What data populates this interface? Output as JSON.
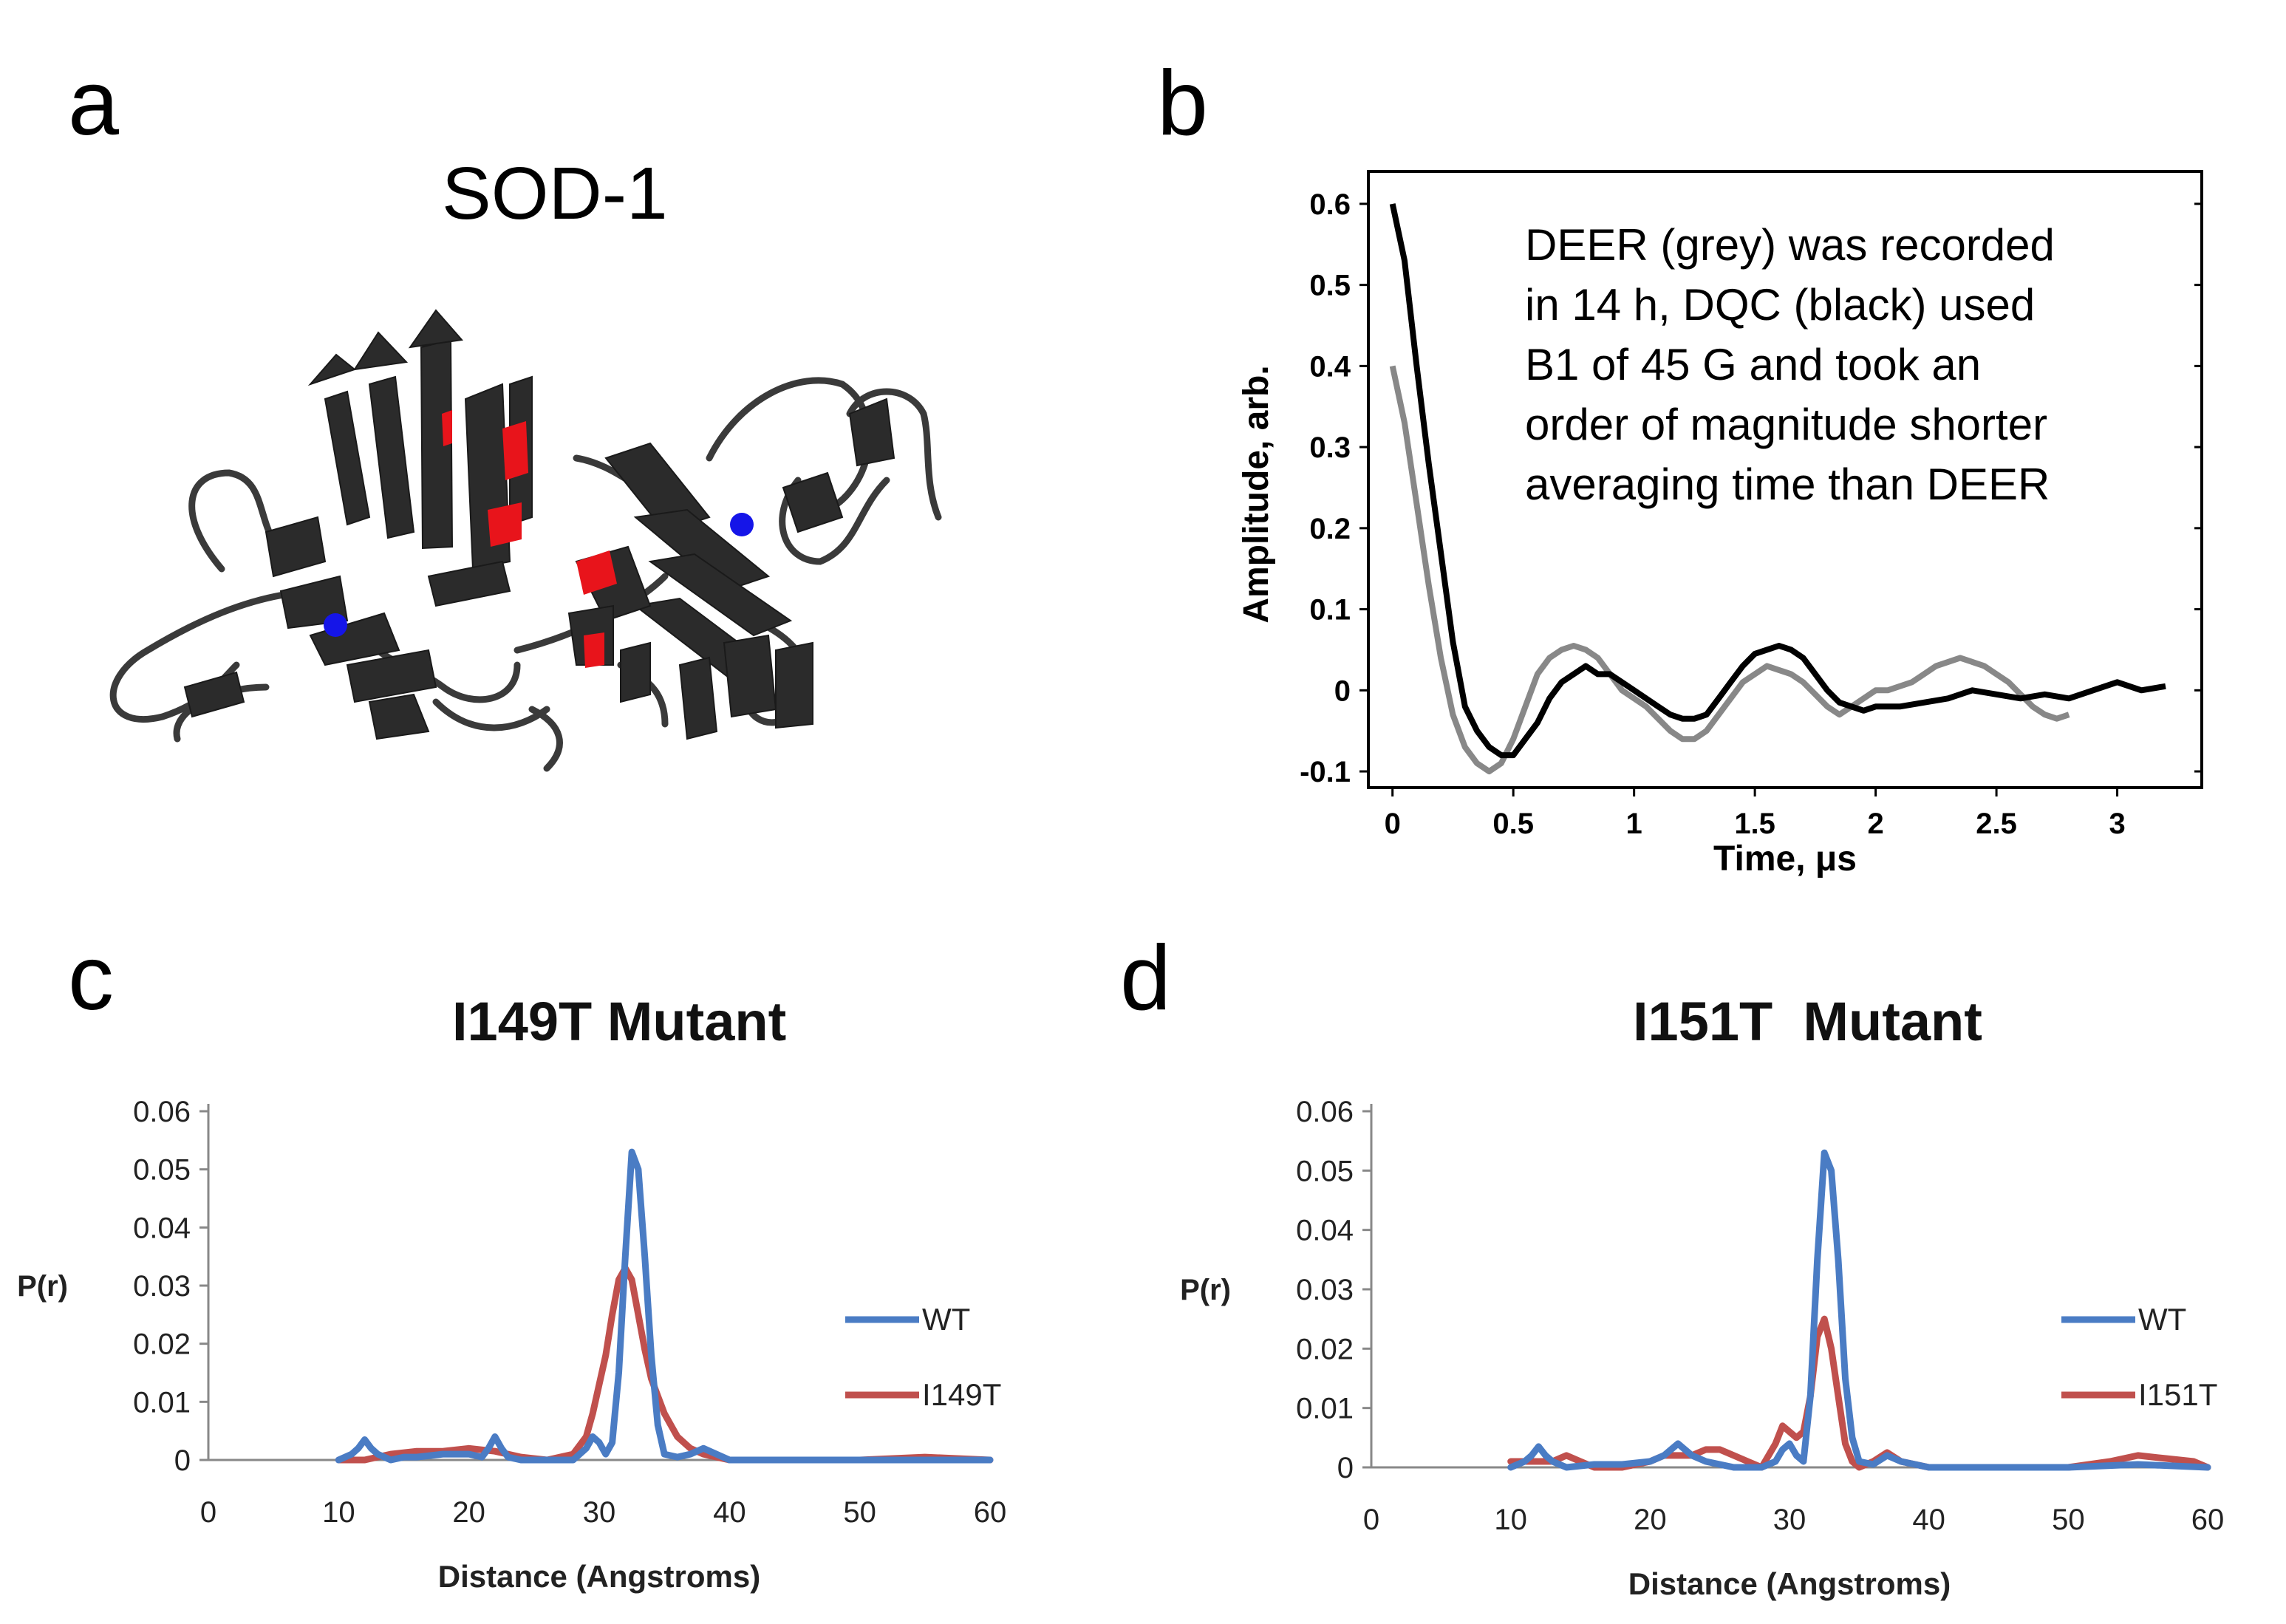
{
  "panels": {
    "a": {
      "letter": "a",
      "title": "SOD-1"
    },
    "b": {
      "letter": "b"
    },
    "c": {
      "letter": "c"
    },
    "d": {
      "letter": "d"
    }
  },
  "structure": {
    "strand_color": "#2b2b2b",
    "highlight_color": "#e8141b",
    "metal_color": "#1515e8"
  },
  "chart_data": [
    {
      "panel": "b",
      "type": "line",
      "title": "",
      "xlabel": "Time, μs",
      "ylabel": "Amplitude, arb.",
      "xlim": [
        -0.1,
        3.35
      ],
      "ylim": [
        -0.12,
        0.64
      ],
      "xticks": [
        "0",
        "0.5",
        "1",
        "1.5",
        "2",
        "2.5",
        "3"
      ],
      "yticks": [
        "-0.1",
        "0",
        "0.1",
        "0.2",
        "0.3",
        "0.4",
        "0.5",
        "0.6"
      ],
      "annotation": [
        "DEER (grey) was recorded",
        "in 14 h, DQC (black) used",
        "B1 of 45 G and took an",
        "order of magnitude shorter",
        "averaging time than DEER"
      ],
      "grid": false,
      "series": [
        {
          "color": "#888888",
          "x": [
            0,
            0.05,
            0.1,
            0.15,
            0.2,
            0.25,
            0.3,
            0.35,
            0.4,
            0.45,
            0.5,
            0.55,
            0.6,
            0.65,
            0.7,
            0.75,
            0.8,
            0.85,
            0.9,
            0.95,
            1.0,
            1.05,
            1.1,
            1.15,
            1.2,
            1.25,
            1.3,
            1.35,
            1.4,
            1.45,
            1.5,
            1.55,
            1.6,
            1.65,
            1.7,
            1.75,
            1.8,
            1.85,
            1.9,
            1.95,
            2.0,
            2.05,
            2.1,
            2.15,
            2.2,
            2.25,
            2.3,
            2.35,
            2.4,
            2.45,
            2.5,
            2.55,
            2.6,
            2.65,
            2.7,
            2.75,
            2.8
          ],
          "y": [
            0.4,
            0.33,
            0.23,
            0.13,
            0.04,
            -0.03,
            -0.07,
            -0.09,
            -0.1,
            -0.09,
            -0.06,
            -0.02,
            0.02,
            0.04,
            0.05,
            0.055,
            0.05,
            0.04,
            0.02,
            0.0,
            -0.01,
            -0.02,
            -0.035,
            -0.05,
            -0.06,
            -0.06,
            -0.05,
            -0.03,
            -0.01,
            0.01,
            0.02,
            0.03,
            0.025,
            0.02,
            0.01,
            -0.005,
            -0.02,
            -0.03,
            -0.02,
            -0.01,
            0.0,
            0.0,
            0.005,
            0.01,
            0.02,
            0.03,
            0.035,
            0.04,
            0.035,
            0.03,
            0.02,
            0.01,
            -0.005,
            -0.02,
            -0.03,
            -0.035,
            -0.03
          ]
        },
        {
          "color": "#000000",
          "x": [
            0,
            0.05,
            0.1,
            0.15,
            0.2,
            0.25,
            0.3,
            0.35,
            0.4,
            0.45,
            0.5,
            0.55,
            0.6,
            0.65,
            0.7,
            0.75,
            0.8,
            0.85,
            0.9,
            0.95,
            1.0,
            1.05,
            1.1,
            1.15,
            1.2,
            1.25,
            1.3,
            1.35,
            1.4,
            1.45,
            1.5,
            1.55,
            1.6,
            1.65,
            1.7,
            1.75,
            1.8,
            1.85,
            1.9,
            1.95,
            2.0,
            2.1,
            2.2,
            2.3,
            2.4,
            2.5,
            2.6,
            2.7,
            2.8,
            2.9,
            3.0,
            3.1,
            3.2
          ],
          "y": [
            0.6,
            0.53,
            0.4,
            0.28,
            0.17,
            0.06,
            -0.02,
            -0.05,
            -0.07,
            -0.08,
            -0.08,
            -0.06,
            -0.04,
            -0.01,
            0.01,
            0.02,
            0.03,
            0.02,
            0.02,
            0.01,
            0.0,
            -0.01,
            -0.02,
            -0.03,
            -0.035,
            -0.035,
            -0.03,
            -0.01,
            0.01,
            0.03,
            0.045,
            0.05,
            0.055,
            0.05,
            0.04,
            0.02,
            0.0,
            -0.015,
            -0.02,
            -0.025,
            -0.02,
            -0.02,
            -0.015,
            -0.01,
            0.0,
            -0.005,
            -0.01,
            -0.005,
            -0.01,
            0.0,
            0.01,
            0.0,
            0.005
          ]
        }
      ]
    },
    {
      "panel": "c",
      "type": "line",
      "title": "I149T Mutant",
      "xlabel": "Distance (Angstroms)",
      "ylabel": "P(r)",
      "xlim": [
        0,
        60
      ],
      "ylim": [
        0,
        0.06
      ],
      "xticks": [
        "0",
        "10",
        "20",
        "30",
        "40",
        "50",
        "60"
      ],
      "yticks": [
        "0",
        "0.01",
        "0.02",
        "0.03",
        "0.04",
        "0.05",
        "0.06"
      ],
      "legend_position": "right",
      "grid": false,
      "series": [
        {
          "name": "WT",
          "color": "#4a7cc4",
          "x": [
            10,
            11,
            11.5,
            12,
            12.5,
            13,
            14,
            15,
            16,
            18,
            20,
            21,
            21.5,
            22,
            22.5,
            23,
            24,
            26,
            28,
            29,
            29.5,
            30,
            30.5,
            31,
            31.5,
            32,
            32.5,
            33,
            33.5,
            34,
            34.5,
            35,
            36,
            37,
            38,
            39,
            40,
            45,
            50,
            55,
            60
          ],
          "y": [
            0,
            0.001,
            0.002,
            0.0035,
            0.002,
            0.001,
            0,
            0.0005,
            0.0005,
            0.001,
            0.001,
            0.0005,
            0.002,
            0.004,
            0.002,
            0.0005,
            0,
            0,
            0,
            0.002,
            0.004,
            0.003,
            0.001,
            0.003,
            0.015,
            0.035,
            0.053,
            0.05,
            0.035,
            0.018,
            0.006,
            0.001,
            0.0005,
            0.001,
            0.002,
            0.001,
            0,
            0,
            0,
            0,
            0
          ]
        },
        {
          "name": "I149T",
          "color": "#c0504d",
          "x": [
            10,
            12,
            14,
            16,
            18,
            20,
            22,
            24,
            26,
            28,
            29,
            29.5,
            30,
            30.5,
            31,
            31.5,
            32,
            32.5,
            33,
            33.5,
            34,
            34.5,
            35,
            35.5,
            36,
            37,
            38,
            39,
            40,
            45,
            50,
            55,
            60
          ],
          "y": [
            0,
            0,
            0.001,
            0.0015,
            0.0015,
            0.002,
            0.0015,
            0.0005,
            0,
            0.001,
            0.004,
            0.008,
            0.013,
            0.018,
            0.025,
            0.031,
            0.033,
            0.031,
            0.025,
            0.019,
            0.014,
            0.011,
            0.008,
            0.006,
            0.004,
            0.002,
            0.001,
            0.0005,
            0,
            0,
            0,
            0.0005,
            0
          ]
        }
      ]
    },
    {
      "panel": "d",
      "type": "line",
      "title": "I151T  Mutant",
      "xlabel": "Distance (Angstroms)",
      "ylabel": "P(r)",
      "xlim": [
        0,
        60
      ],
      "ylim": [
        0,
        0.06
      ],
      "xticks": [
        "0",
        "10",
        "20",
        "30",
        "40",
        "50",
        "60"
      ],
      "yticks": [
        "0",
        "0.01",
        "0.02",
        "0.03",
        "0.04",
        "0.05",
        "0.06"
      ],
      "legend_position": "right",
      "grid": false,
      "series": [
        {
          "name": "WT",
          "color": "#4a7cc4",
          "x": [
            10,
            11,
            11.5,
            12,
            12.5,
            13,
            14,
            16,
            18,
            20,
            21,
            21.5,
            22,
            22.5,
            23,
            24,
            26,
            28,
            29,
            29.5,
            30,
            30.5,
            31,
            31.5,
            32,
            32.5,
            33,
            33.5,
            34,
            34.5,
            35,
            36,
            37,
            38,
            40,
            45,
            50,
            55,
            60
          ],
          "y": [
            0,
            0.001,
            0.002,
            0.0035,
            0.002,
            0.001,
            0,
            0.0005,
            0.0005,
            0.001,
            0.002,
            0.003,
            0.004,
            0.003,
            0.002,
            0.001,
            0,
            0,
            0.001,
            0.003,
            0.004,
            0.002,
            0.001,
            0.012,
            0.035,
            0.053,
            0.05,
            0.035,
            0.015,
            0.005,
            0.001,
            0.0005,
            0.002,
            0.001,
            0,
            0,
            0,
            0.0005,
            0
          ]
        },
        {
          "name": "I151T",
          "color": "#c0504d",
          "x": [
            10,
            12,
            13,
            14,
            15,
            16,
            18,
            20,
            21,
            22,
            23,
            24,
            25,
            26,
            27,
            28,
            29,
            29.5,
            30,
            30.5,
            31,
            31.5,
            32,
            32.5,
            33,
            33.5,
            34,
            34.5,
            35,
            36,
            37,
            38,
            40,
            45,
            50,
            53,
            55,
            57,
            59,
            60
          ],
          "y": [
            0.001,
            0.001,
            0.001,
            0.002,
            0.001,
            0,
            0,
            0.001,
            0.002,
            0.002,
            0.002,
            0.003,
            0.003,
            0.002,
            0.001,
            0,
            0.004,
            0.007,
            0.006,
            0.005,
            0.006,
            0.012,
            0.022,
            0.025,
            0.02,
            0.012,
            0.004,
            0.001,
            0,
            0.001,
            0.0025,
            0.001,
            0,
            0,
            0,
            0.001,
            0.002,
            0.0015,
            0.001,
            0
          ]
        }
      ]
    }
  ]
}
